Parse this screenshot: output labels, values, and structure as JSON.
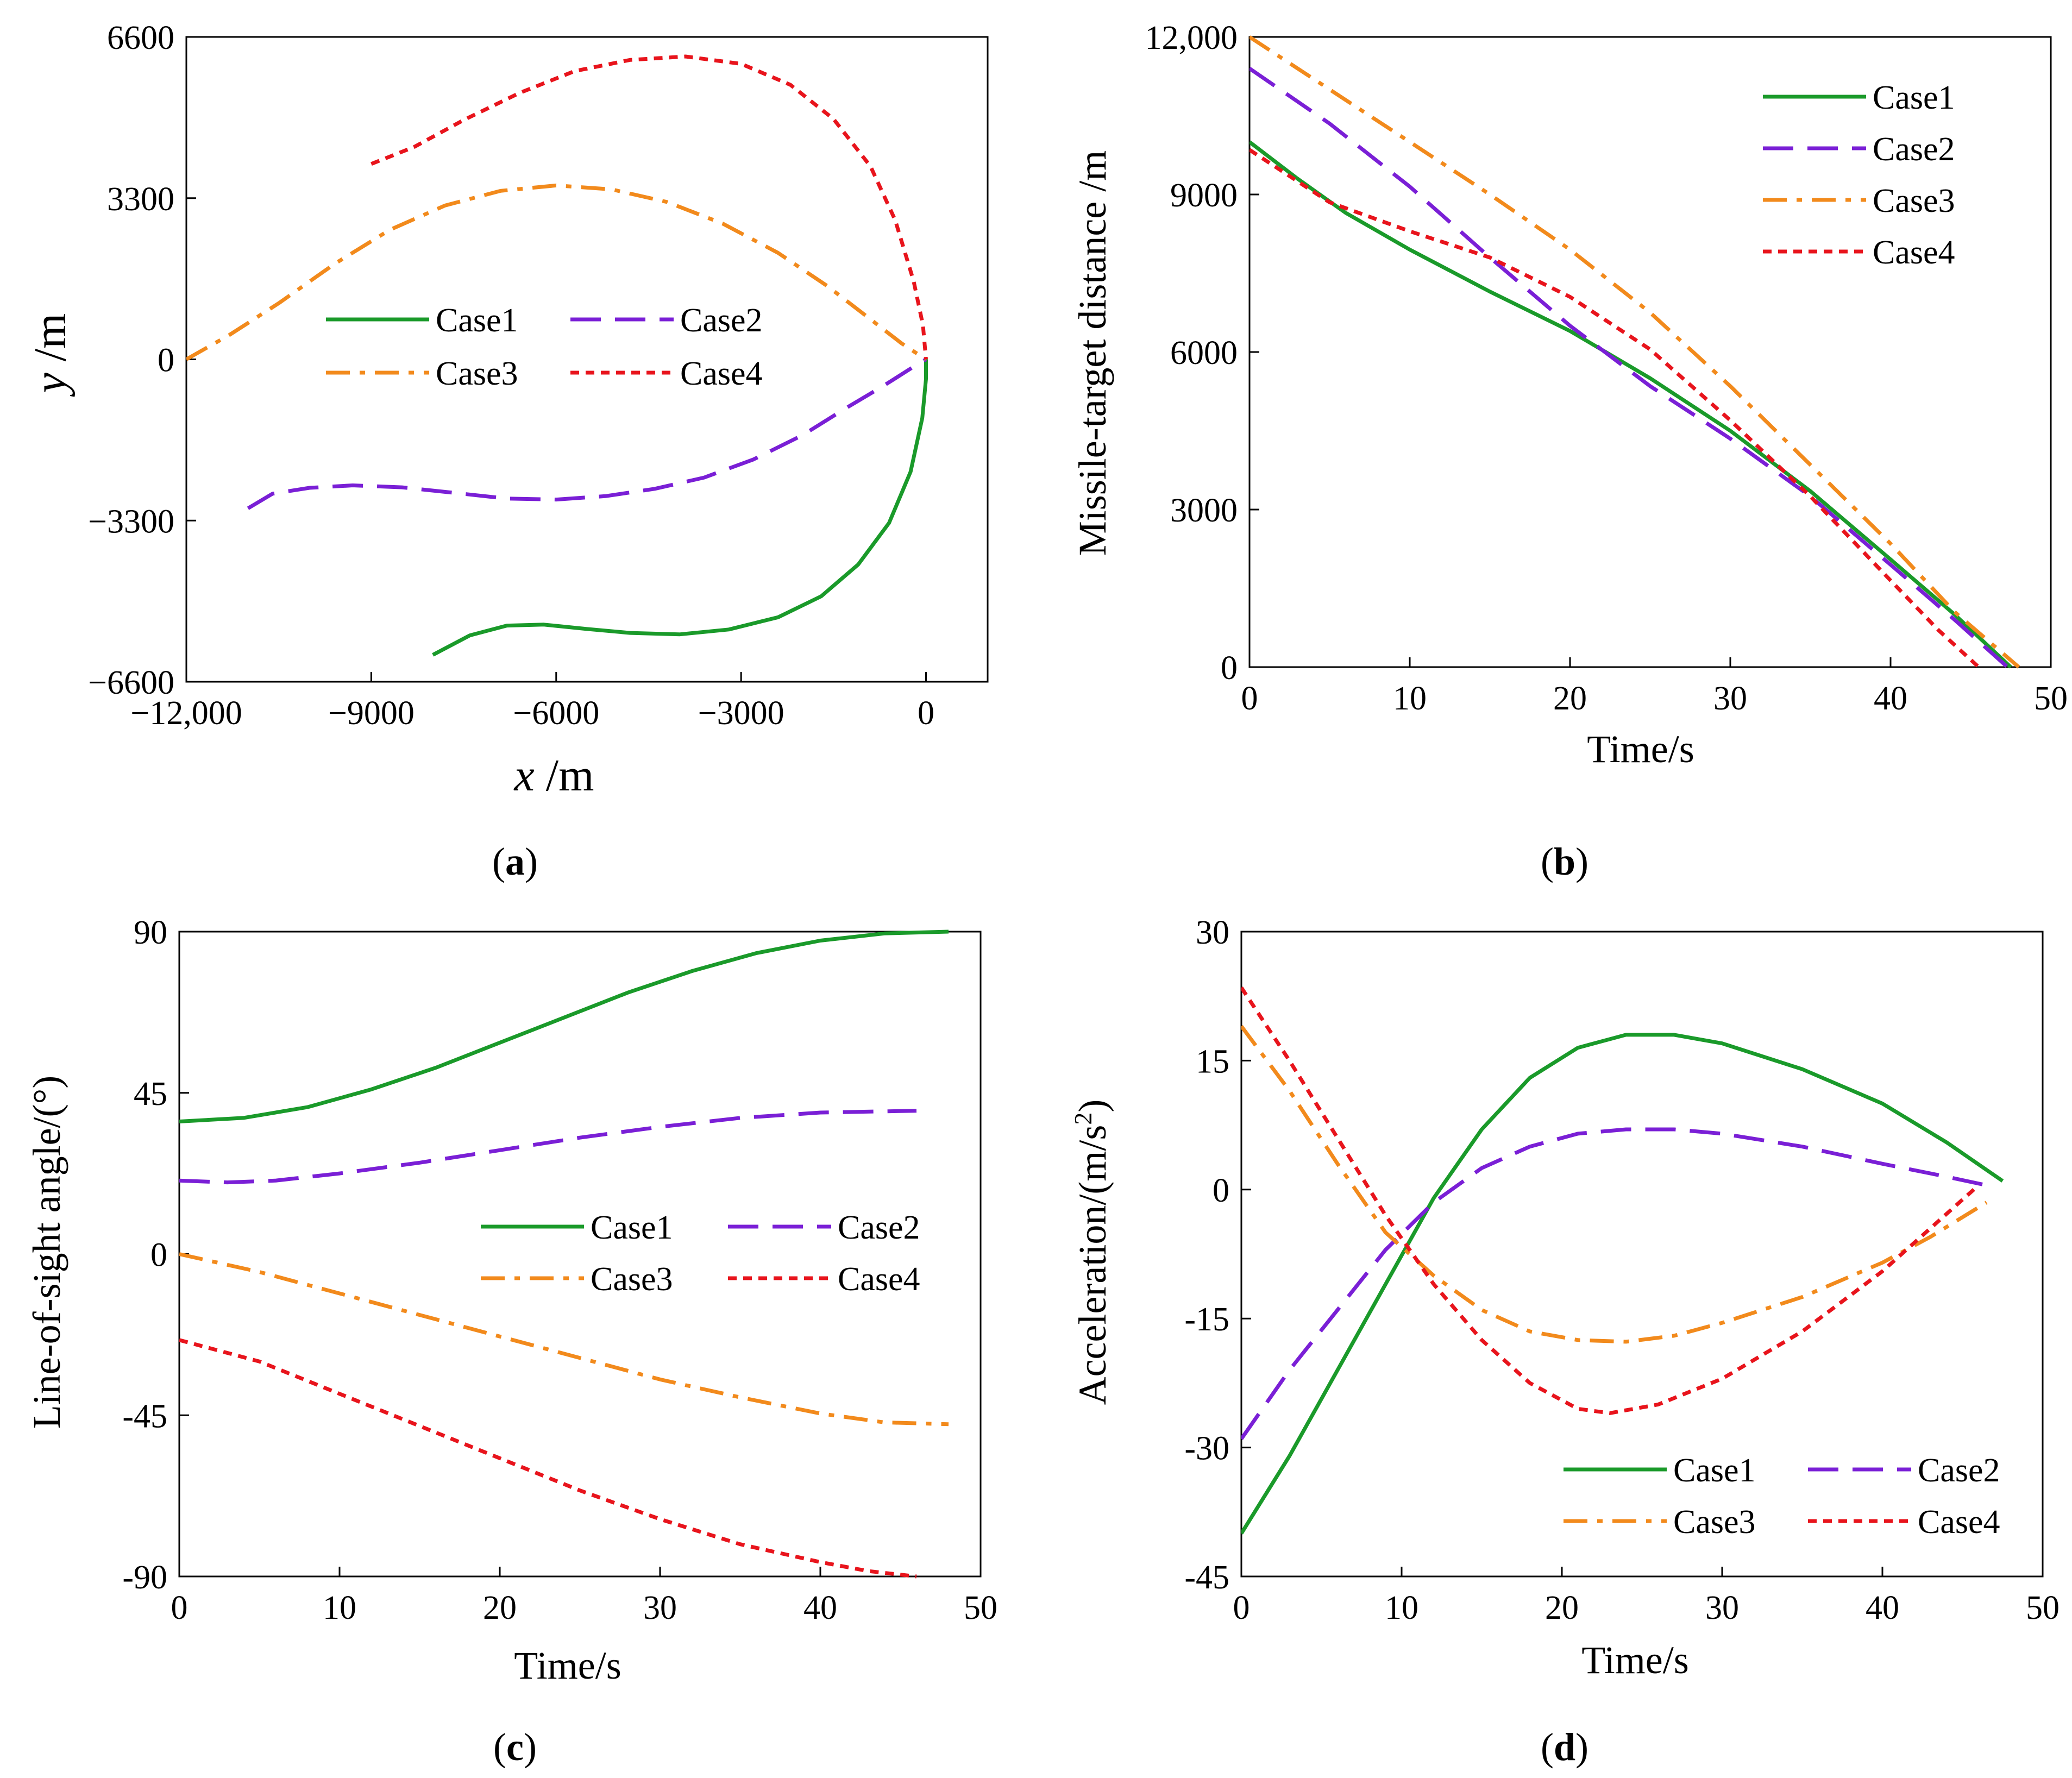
{
  "colors": {
    "Case1": "#1a9a2a",
    "Case2": "#7a1fd6",
    "Case3": "#f28a1c",
    "Case4": "#e8141c"
  },
  "panels": [
    {
      "id": "a",
      "caption": {
        "open": "(",
        "letter": "a",
        "close": ")"
      },
      "xlabel": {
        "var": "x",
        "unit": " /m"
      },
      "ylabel": {
        "var": "y",
        "unit": " /m"
      },
      "xticks": [
        "−12,000",
        "−9000",
        "−6000",
        "−3000",
        "0"
      ],
      "yticks": [
        "6600",
        "3300",
        "0",
        "−3300",
        "−6600"
      ],
      "legend": [
        "Case1",
        "Case2",
        "Case3",
        "Case4"
      ]
    },
    {
      "id": "b",
      "caption": {
        "open": "(",
        "letter": "b",
        "close": ")"
      },
      "xlabel": "Time/s",
      "ylabel": "Missile-target distance /m",
      "xticks": [
        "0",
        "10",
        "20",
        "30",
        "40",
        "50"
      ],
      "yticks": [
        "12,000",
        "9000",
        "6000",
        "3000",
        "0"
      ],
      "legend": [
        "Case1",
        "Case2",
        "Case3",
        "Case4"
      ]
    },
    {
      "id": "c",
      "caption": {
        "open": "(",
        "letter": "c",
        "close": ")"
      },
      "xlabel": "Time/s",
      "ylabel": "Line-of-sight angle/(°)",
      "xticks": [
        "0",
        "10",
        "20",
        "30",
        "40",
        "50"
      ],
      "yticks": [
        "90",
        "45",
        "0",
        "-45",
        "-90"
      ],
      "legend": [
        "Case1",
        "Case2",
        "Case3",
        "Case4"
      ]
    },
    {
      "id": "d",
      "caption": {
        "open": "(",
        "letter": "d",
        "close": ")"
      },
      "xlabel": "Time/s",
      "ylabel": {
        "main": "Acceleration/(m/s",
        "sup": "2",
        "end": ")"
      },
      "xticks": [
        "0",
        "10",
        "20",
        "30",
        "40",
        "50"
      ],
      "yticks": [
        "30",
        "15",
        "0",
        "-15",
        "-30",
        "-45"
      ],
      "legend": [
        "Case1",
        "Case2",
        "Case3",
        "Case4"
      ]
    }
  ],
  "chart_data": [
    {
      "type": "line",
      "panel": "a",
      "xlim": [
        -12000,
        1000
      ],
      "ylim": [
        -6600,
        6600
      ],
      "series": [
        {
          "name": "Case1",
          "style": "solid",
          "points": [
            [
              -8000,
              -6050
            ],
            [
              -7400,
              -5650
            ],
            [
              -6800,
              -5450
            ],
            [
              -6200,
              -5430
            ],
            [
              -5500,
              -5520
            ],
            [
              -4800,
              -5600
            ],
            [
              -4000,
              -5630
            ],
            [
              -3200,
              -5530
            ],
            [
              -2400,
              -5280
            ],
            [
              -1700,
              -4850
            ],
            [
              -1100,
              -4200
            ],
            [
              -600,
              -3350
            ],
            [
              -250,
              -2300
            ],
            [
              -60,
              -1200
            ],
            [
              0,
              -400
            ],
            [
              0,
              0
            ]
          ]
        },
        {
          "name": "Case2",
          "style": "dash",
          "points": [
            [
              -11000,
              -3050
            ],
            [
              -10600,
              -2750
            ],
            [
              -10000,
              -2630
            ],
            [
              -9300,
              -2580
            ],
            [
              -8500,
              -2620
            ],
            [
              -7600,
              -2740
            ],
            [
              -6800,
              -2850
            ],
            [
              -6000,
              -2870
            ],
            [
              -5200,
              -2800
            ],
            [
              -4400,
              -2650
            ],
            [
              -3600,
              -2420
            ],
            [
              -2800,
              -2050
            ],
            [
              -2000,
              -1550
            ],
            [
              -1300,
              -1000
            ],
            [
              -700,
              -550
            ],
            [
              -200,
              -150
            ],
            [
              0,
              0
            ]
          ]
        },
        {
          "name": "Case3",
          "style": "dashdot",
          "points": [
            [
              -12000,
              0
            ],
            [
              -11300,
              500
            ],
            [
              -10500,
              1150
            ],
            [
              -9600,
              1950
            ],
            [
              -8700,
              2650
            ],
            [
              -7800,
              3150
            ],
            [
              -6900,
              3450
            ],
            [
              -6000,
              3560
            ],
            [
              -5100,
              3480
            ],
            [
              -4200,
              3220
            ],
            [
              -3300,
              2780
            ],
            [
              -2400,
              2180
            ],
            [
              -1600,
              1500
            ],
            [
              -900,
              820
            ],
            [
              -400,
              330
            ],
            [
              -100,
              80
            ],
            [
              0,
              0
            ]
          ]
        },
        {
          "name": "Case4",
          "style": "dot",
          "points": [
            [
              -9000,
              4000
            ],
            [
              -8300,
              4350
            ],
            [
              -7500,
              4900
            ],
            [
              -6600,
              5450
            ],
            [
              -5700,
              5900
            ],
            [
              -4800,
              6130
            ],
            [
              -3900,
              6200
            ],
            [
              -3000,
              6050
            ],
            [
              -2200,
              5620
            ],
            [
              -1500,
              4920
            ],
            [
              -900,
              3950
            ],
            [
              -500,
              2850
            ],
            [
              -200,
              1600
            ],
            [
              -50,
              700
            ],
            [
              0,
              0
            ]
          ]
        }
      ]
    },
    {
      "type": "line",
      "panel": "b",
      "xlim": [
        0,
        50
      ],
      "ylim": [
        0,
        12000
      ],
      "series": [
        {
          "name": "Case1",
          "style": "solid",
          "points": [
            [
              0,
              10000
            ],
            [
              3,
              9300
            ],
            [
              6,
              8650
            ],
            [
              10,
              7950
            ],
            [
              15,
              7150
            ],
            [
              20,
              6400
            ],
            [
              25,
              5500
            ],
            [
              30,
              4500
            ],
            [
              35,
              3350
            ],
            [
              40,
              2050
            ],
            [
              44,
              1000
            ],
            [
              47.5,
              0
            ]
          ]
        },
        {
          "name": "Case2",
          "style": "dash",
          "points": [
            [
              0,
              11400
            ],
            [
              5,
              10350
            ],
            [
              10,
              9150
            ],
            [
              15,
              7800
            ],
            [
              20,
              6500
            ],
            [
              25,
              5350
            ],
            [
              30,
              4350
            ],
            [
              35,
              3250
            ],
            [
              40,
              1950
            ],
            [
              44,
              900
            ],
            [
              47.3,
              0
            ]
          ]
        },
        {
          "name": "Case3",
          "style": "dashdot",
          "points": [
            [
              0,
              12000
            ],
            [
              5,
              11000
            ],
            [
              10,
              10000
            ],
            [
              15,
              9000
            ],
            [
              20,
              7950
            ],
            [
              25,
              6750
            ],
            [
              30,
              5350
            ],
            [
              35,
              3850
            ],
            [
              40,
              2350
            ],
            [
              44,
              1050
            ],
            [
              48,
              0
            ]
          ]
        },
        {
          "name": "Case4",
          "style": "dot",
          "points": [
            [
              0,
              9850
            ],
            [
              5,
              8850
            ],
            [
              10,
              8300
            ],
            [
              15,
              7800
            ],
            [
              20,
              7050
            ],
            [
              25,
              6050
            ],
            [
              30,
              4700
            ],
            [
              35,
              3250
            ],
            [
              40,
              1650
            ],
            [
              43,
              700
            ],
            [
              45.5,
              0
            ]
          ]
        }
      ]
    },
    {
      "type": "line",
      "panel": "c",
      "xlim": [
        0,
        50
      ],
      "ylim": [
        -90,
        90
      ],
      "series": [
        {
          "name": "Case1",
          "style": "solid",
          "points": [
            [
              0,
              37
            ],
            [
              4,
              38
            ],
            [
              8,
              41
            ],
            [
              12,
              46
            ],
            [
              16,
              52
            ],
            [
              20,
              59
            ],
            [
              24,
              66
            ],
            [
              28,
              73
            ],
            [
              32,
              79
            ],
            [
              36,
              84
            ],
            [
              40,
              87.5
            ],
            [
              44,
              89.5
            ],
            [
              48,
              90
            ]
          ]
        },
        {
          "name": "Case2",
          "style": "dash",
          "points": [
            [
              0,
              20.5
            ],
            [
              3,
              20
            ],
            [
              6,
              20.5
            ],
            [
              10,
              22.5
            ],
            [
              15,
              25.5
            ],
            [
              20,
              29
            ],
            [
              25,
              32.5
            ],
            [
              30,
              35.5
            ],
            [
              35,
              38
            ],
            [
              40,
              39.5
            ],
            [
              46,
              40
            ]
          ]
        },
        {
          "name": "Case3",
          "style": "dashdot",
          "points": [
            [
              0,
              0
            ],
            [
              5,
              -5
            ],
            [
              10,
              -11
            ],
            [
              15,
              -17
            ],
            [
              20,
              -23
            ],
            [
              25,
              -29
            ],
            [
              30,
              -35
            ],
            [
              35,
              -40
            ],
            [
              40,
              -44.5
            ],
            [
              44,
              -47
            ],
            [
              48,
              -47.5
            ]
          ]
        },
        {
          "name": "Case4",
          "style": "dot",
          "points": [
            [
              0,
              -24
            ],
            [
              5,
              -30
            ],
            [
              10,
              -39
            ],
            [
              15,
              -48
            ],
            [
              20,
              -57
            ],
            [
              25,
              -66
            ],
            [
              30,
              -74
            ],
            [
              35,
              -81
            ],
            [
              40,
              -86
            ],
            [
              43,
              -88.5
            ],
            [
              46,
              -90
            ]
          ]
        }
      ]
    },
    {
      "type": "line",
      "panel": "d",
      "xlim": [
        0,
        50
      ],
      "ylim": [
        -45,
        30
      ],
      "series": [
        {
          "name": "Case1",
          "style": "solid",
          "points": [
            [
              0,
              -40
            ],
            [
              3,
              -31
            ],
            [
              6,
              -21
            ],
            [
              9,
              -11
            ],
            [
              12,
              -1
            ],
            [
              15,
              7
            ],
            [
              18,
              13
            ],
            [
              21,
              16.5
            ],
            [
              24,
              18
            ],
            [
              27,
              18
            ],
            [
              30,
              17
            ],
            [
              35,
              14
            ],
            [
              40,
              10
            ],
            [
              44,
              5.5
            ],
            [
              47.5,
              1
            ]
          ]
        },
        {
          "name": "Case2",
          "style": "dash",
          "points": [
            [
              0,
              -29
            ],
            [
              3,
              -21
            ],
            [
              6,
              -14
            ],
            [
              9,
              -7
            ],
            [
              12,
              -1.5
            ],
            [
              15,
              2.5
            ],
            [
              18,
              5
            ],
            [
              21,
              6.5
            ],
            [
              24,
              7
            ],
            [
              27,
              7
            ],
            [
              30,
              6.5
            ],
            [
              35,
              5
            ],
            [
              40,
              3
            ],
            [
              44,
              1.5
            ],
            [
              46.5,
              0.5
            ]
          ]
        },
        {
          "name": "Case3",
          "style": "dashdot",
          "points": [
            [
              0,
              19
            ],
            [
              3,
              11.5
            ],
            [
              6,
              3
            ],
            [
              9,
              -5
            ],
            [
              12,
              -10
            ],
            [
              15,
              -14
            ],
            [
              18,
              -16.5
            ],
            [
              21,
              -17.5
            ],
            [
              24,
              -17.7
            ],
            [
              27,
              -17
            ],
            [
              30,
              -15.5
            ],
            [
              35,
              -12.5
            ],
            [
              40,
              -8.5
            ],
            [
              43,
              -5.5
            ],
            [
              46.5,
              -1.5
            ]
          ]
        },
        {
          "name": "Case4",
          "style": "dot",
          "points": [
            [
              0,
              23.5
            ],
            [
              3,
              15
            ],
            [
              6,
              6
            ],
            [
              9,
              -3
            ],
            [
              12,
              -11
            ],
            [
              15,
              -17.5
            ],
            [
              18,
              -22.5
            ],
            [
              21,
              -25.5
            ],
            [
              23,
              -26
            ],
            [
              26,
              -25
            ],
            [
              30,
              -22
            ],
            [
              35,
              -16.5
            ],
            [
              40,
              -9.5
            ],
            [
              43,
              -4.5
            ],
            [
              46,
              0.5
            ]
          ]
        }
      ]
    }
  ]
}
